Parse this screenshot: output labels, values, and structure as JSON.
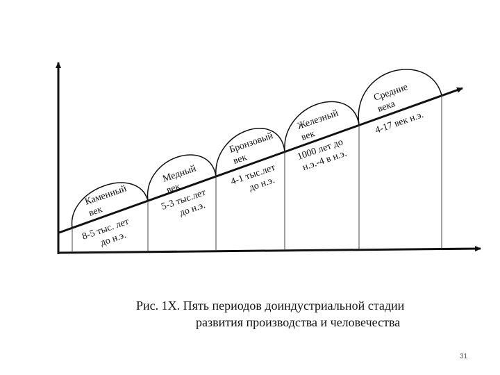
{
  "diagram": {
    "periods": [
      {
        "name": [
          "Каменный",
          "век"
        ],
        "dates": [
          "8-5 тыс. лет",
          "до н.э."
        ]
      },
      {
        "name": [
          "Медный",
          "век"
        ],
        "dates": [
          "5-3 тыс.лет",
          "до н.э."
        ]
      },
      {
        "name": [
          "Бронзовый",
          "век"
        ],
        "dates": [
          "4-1 тыс.лет",
          "до н.э."
        ]
      },
      {
        "name": [
          "Железный",
          "век"
        ],
        "dates": [
          "1000 лет до",
          "н.э.-4 в н.э."
        ]
      },
      {
        "name": [
          "Средние",
          "века"
        ],
        "dates": [
          "4-17 век н.э."
        ]
      }
    ]
  },
  "caption": {
    "line1": "Рис. 1Х.   Пять периодов доиндустриальной стадии",
    "line2": "развития производства и человечества"
  },
  "page_number": "31"
}
